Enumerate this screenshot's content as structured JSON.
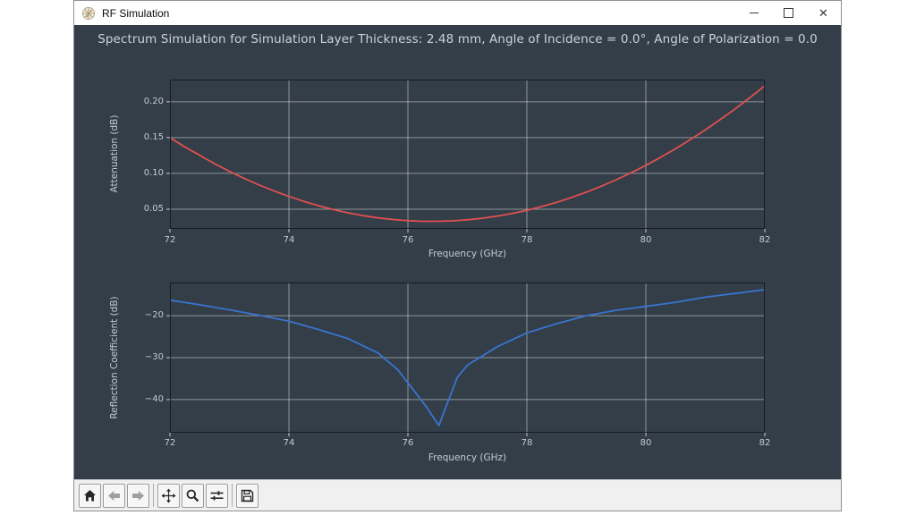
{
  "window": {
    "title": "RF Simulation"
  },
  "titlebar": {
    "close_glyph": "✕"
  },
  "suptitle": "Spectrum Simulation for Simulation Layer Thickness: 2.48 mm, Angle of Incidence = 0.0°, Angle of Polarization = 0.0",
  "chart_data": [
    {
      "type": "line",
      "title": "",
      "xlabel": "Frequency (GHz)",
      "ylabel": "Attenuation (dB)",
      "xlim": [
        72,
        82
      ],
      "ylim": [
        0.0225,
        0.231
      ],
      "grid": true,
      "legend": "none",
      "xticks": {
        "values": [
          72,
          74,
          76,
          78,
          80,
          82
        ],
        "labels": [
          "72",
          "74",
          "76",
          "78",
          "80",
          "82"
        ]
      },
      "yticks": {
        "values": [
          0.05,
          0.1,
          0.15,
          0.2
        ],
        "labels": [
          "0.05",
          "0.10",
          "0.15",
          "0.20"
        ]
      },
      "series": [
        {
          "name": "attenuation",
          "color": "#e05050",
          "x": [
            72.0,
            72.25,
            72.5,
            72.75,
            73.0,
            73.25,
            73.5,
            73.75,
            74.0,
            74.25,
            74.5,
            74.75,
            75.0,
            75.25,
            75.5,
            75.75,
            76.0,
            76.25,
            76.5,
            76.75,
            77.0,
            77.25,
            77.5,
            77.75,
            78.0,
            78.25,
            78.5,
            78.75,
            79.0,
            79.25,
            79.5,
            79.75,
            80.0,
            80.25,
            80.5,
            80.75,
            81.0,
            81.25,
            81.5,
            81.75,
            82.0
          ],
          "y": [
            0.15,
            0.137,
            0.1252,
            0.1135,
            0.1028,
            0.0929,
            0.0838,
            0.0754,
            0.0678,
            0.0609,
            0.0548,
            0.0494,
            0.0448,
            0.041,
            0.0379,
            0.0356,
            0.034,
            0.0331,
            0.0331,
            0.0337,
            0.0352,
            0.0374,
            0.0403,
            0.044,
            0.0485,
            0.0537,
            0.0596,
            0.0664,
            0.0738,
            0.0821,
            0.0911,
            0.1008,
            0.1113,
            0.1225,
            0.1345,
            0.1473,
            0.1608,
            0.1751,
            0.1901,
            0.2059,
            0.2224
          ]
        }
      ]
    },
    {
      "type": "line",
      "title": "",
      "xlabel": "Frequency (GHz)",
      "ylabel": "Reflection Coefficient (dB)",
      "xlim": [
        72,
        82
      ],
      "ylim": [
        -47.9,
        -12.1
      ],
      "grid": true,
      "legend": "none",
      "xticks": {
        "values": [
          72,
          74,
          76,
          78,
          80,
          82
        ],
        "labels": [
          "72",
          "74",
          "76",
          "78",
          "80",
          "82"
        ]
      },
      "yticks": {
        "values": [
          -40,
          -30,
          -20
        ],
        "labels": [
          "−40",
          "−30",
          "−20"
        ]
      },
      "series": [
        {
          "name": "reflection_coefficient",
          "color": "#3a74d0",
          "x": [
            72.0,
            72.5,
            73.0,
            73.5,
            74.0,
            74.5,
            75.0,
            75.5,
            75.83,
            76.0,
            76.3,
            76.52,
            76.83,
            77.0,
            77.25,
            77.5,
            78.0,
            78.5,
            79.0,
            79.5,
            80.0,
            80.5,
            81.0,
            81.5,
            82.0
          ],
          "y": [
            -16.3,
            -17.4,
            -18.6,
            -19.9,
            -21.3,
            -23.3,
            -25.5,
            -28.9,
            -32.9,
            -36.0,
            -41.5,
            -46.2,
            -34.7,
            -31.8,
            -29.6,
            -27.4,
            -24.1,
            -21.9,
            -20.0,
            -18.7,
            -17.8,
            -16.8,
            -15.6,
            -14.7,
            -13.8
          ]
        }
      ]
    }
  ],
  "toolbar": {
    "buttons": [
      "home",
      "back",
      "forward",
      "pan",
      "zoom",
      "configure-subplots",
      "save"
    ]
  },
  "colors": {
    "figure_bg": "#333e48",
    "grid": "#ffffff",
    "spine": "#161c24",
    "tick_text": "#c3cbd3",
    "title_text": "#ccd3da",
    "attenuation_line": "#e05050",
    "reflection_line": "#3a74d0",
    "titlebar_bg": "#ffffff",
    "toolbar_bg": "#f0f0f0"
  }
}
